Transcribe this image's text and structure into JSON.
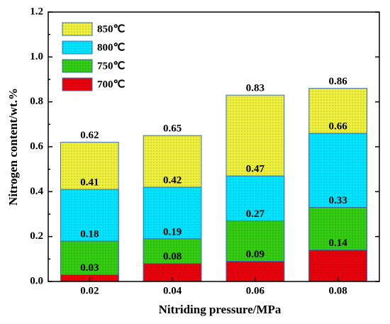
{
  "chart_data": {
    "type": "bar",
    "bar_mode": "overlap",
    "x_label": "Nitriding pressure/MPa",
    "y_label": "Nitrogen content/wt.%",
    "categories": [
      "0.02",
      "0.04",
      "0.06",
      "0.08"
    ],
    "series": [
      {
        "name": "700℃",
        "color": "#e8000b",
        "values": [
          0.03,
          0.08,
          0.09,
          0.14
        ]
      },
      {
        "name": "750℃",
        "color": "#33cc12",
        "values": [
          0.18,
          0.19,
          0.27,
          0.33
        ]
      },
      {
        "name": "800℃",
        "color": "#00e4ff",
        "values": [
          0.41,
          0.42,
          0.47,
          0.66
        ]
      },
      {
        "name": "850℃",
        "color": "#eef03c",
        "values": [
          0.62,
          0.65,
          0.83,
          0.86
        ]
      }
    ],
    "ylim": [
      0,
      1.2
    ],
    "yticks": [
      {
        "value": 0,
        "label": "0.0"
      },
      0.2,
      0.4,
      0.6,
      0.8,
      {
        "value": 1,
        "label": "1.0"
      },
      1.2
    ],
    "legend": "upper left"
  }
}
